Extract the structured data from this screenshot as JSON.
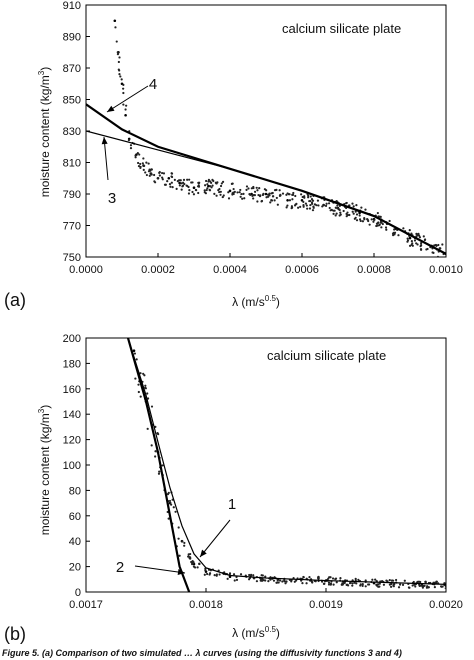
{
  "figure": {
    "caption": "Figure 5. (a) Comparison of two simulated … λ curves (using the diffusivity functions 3 and 4)"
  },
  "chart_data": [
    {
      "type": "scatter",
      "panel_label": "(a)",
      "title": "calcium silicate plate",
      "xlabel": "λ (m/s",
      "xlabel_sup": "0.5",
      "xlabel_end": ")",
      "ylabel": "moisture content (kg/m",
      "ylabel_sup": "3",
      "ylabel_end": ")",
      "xlim": [
        0,
        0.001
      ],
      "ylim": [
        750,
        910
      ],
      "xticks": [
        "0.0000",
        "0.0002",
        "0.0004",
        "0.0006",
        "0.0008",
        "0.0010"
      ],
      "yticks": [
        "750",
        "770",
        "790",
        "810",
        "830",
        "850",
        "870",
        "890",
        "910"
      ],
      "grid": false,
      "series": [
        {
          "kind": "points",
          "x": [
            8e-05,
            9e-05,
            0.0001,
            0.00011,
            0.00012,
            0.00014,
            0.00016,
            0.00018,
            0.0002,
            0.00023,
            0.00026,
            0.0003,
            0.00034,
            0.0004,
            0.00046,
            0.0005,
            0.00056,
            0.0006,
            0.00066,
            0.0007,
            0.00076,
            0.0008,
            0.00086,
            0.0009,
            0.00096,
            0.001
          ],
          "y": [
            900,
            880,
            860,
            840,
            825,
            815,
            808,
            803,
            800,
            800,
            797,
            794,
            795,
            792,
            790,
            790,
            786,
            786,
            783,
            781,
            778,
            774,
            768,
            762,
            757,
            752
          ]
        },
        {
          "kind": "line",
          "name": "3",
          "x": [
            0.0,
            0.0002,
            0.0004,
            0.0006,
            0.0008,
            0.001
          ],
          "y": [
            830,
            818,
            806,
            792,
            776,
            752
          ]
        },
        {
          "kind": "line",
          "name": "4",
          "x": [
            0.0,
            0.0001,
            0.0002,
            0.0004,
            0.0006,
            0.0008,
            0.001
          ],
          "y": [
            847,
            831,
            820,
            806,
            792,
            776,
            752
          ]
        }
      ],
      "annotations": [
        {
          "text": "4",
          "x": 4e-05,
          "y": 836
        },
        {
          "text": "3",
          "x": 3e-05,
          "y": 823
        }
      ]
    },
    {
      "type": "scatter",
      "panel_label": "(b)",
      "title": "calcium silicate plate",
      "xlabel": "λ (m/s",
      "xlabel_sup": "0.5",
      "xlabel_end": ")",
      "ylabel": "moisture content (kg/m",
      "ylabel_sup": "3",
      "ylabel_end": ")",
      "xlim": [
        0.0017,
        0.002
      ],
      "ylim": [
        0,
        200
      ],
      "xticks": [
        "0.0017",
        "0.0018",
        "0.0019",
        "0.0020"
      ],
      "yticks": [
        "0",
        "20",
        "40",
        "60",
        "80",
        "100",
        "120",
        "140",
        "160",
        "180",
        "200"
      ],
      "grid": false,
      "series": [
        {
          "kind": "points",
          "x": [
            0.00174,
            0.00175,
            0.00176,
            0.00177,
            0.00178,
            0.00179,
            0.0018,
            0.00182,
            0.00184,
            0.00186,
            0.0019,
            0.00194,
            0.00198,
            0.002
          ],
          "y": [
            190,
            150,
            110,
            70,
            40,
            22,
            16,
            12,
            11,
            10,
            9,
            7,
            6,
            5
          ]
        },
        {
          "kind": "line",
          "name": "1",
          "x": [
            0.001735,
            0.00175,
            0.00176,
            0.00177,
            0.00178,
            0.00179,
            0.0018,
            0.00182,
            0.00185,
            0.0019,
            0.00195,
            0.002
          ],
          "y": [
            200,
            155,
            118,
            82,
            52,
            30,
            19,
            13,
            11,
            9,
            7.5,
            6
          ]
        },
        {
          "kind": "line",
          "name": "2",
          "x": [
            0.001735,
            0.00175,
            0.00176,
            0.00177,
            0.001778,
            0.001786
          ],
          "y": [
            200,
            150,
            110,
            60,
            20,
            0
          ]
        }
      ],
      "annotations": [
        {
          "text": "1",
          "x": 0.001826,
          "y": 62
        },
        {
          "text": "2",
          "x": 0.001744,
          "y": 16
        }
      ]
    }
  ]
}
